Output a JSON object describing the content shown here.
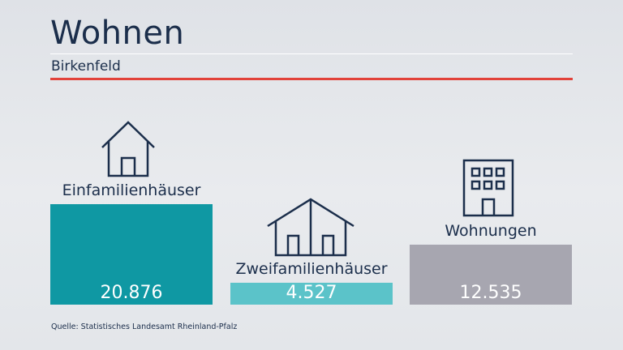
{
  "header": {
    "title": "Wohnen",
    "subtitle": "Birkenfeld"
  },
  "chart_data": {
    "type": "bar",
    "title": "Wohnen",
    "subtitle": "Birkenfeld",
    "categories": [
      "Einfamilienhäuser",
      "Zweifamilienhäuser",
      "Wohnungen"
    ],
    "values": [
      20876,
      4527,
      12535
    ],
    "value_labels": [
      "20.876",
      "4.527",
      "12.535"
    ],
    "colors": [
      "#0f98a3",
      "#5bc3c9",
      "#a7a6b0"
    ],
    "icons": [
      "house-icon",
      "two-family-house-icon",
      "apartment-building-icon"
    ],
    "grid": false,
    "legend": "none"
  },
  "footer": {
    "source": "Quelle: Statistisches Landesamt Rheinland-Pfalz"
  }
}
